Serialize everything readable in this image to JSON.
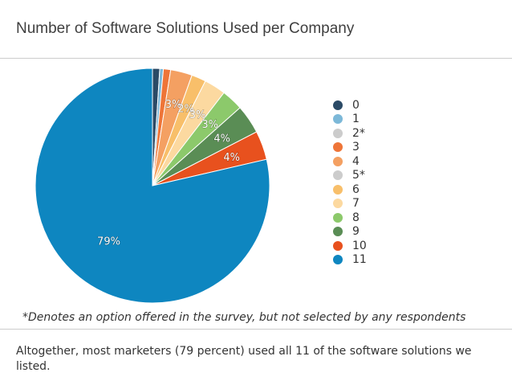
{
  "chart_data": {
    "type": "pie",
    "title": "Number of Software Solutions Used per Company",
    "categories": [
      "0",
      "1",
      "2*",
      "3",
      "4",
      "5*",
      "6",
      "7",
      "8",
      "9",
      "10",
      "11"
    ],
    "values": [
      1,
      0.5,
      0,
      1,
      3,
      0,
      2,
      3,
      3,
      4,
      4,
      79
    ],
    "labels": [
      "",
      "",
      "",
      "",
      "3%",
      "",
      "2%",
      "3%",
      "3%",
      "4%",
      "4%",
      "79%"
    ],
    "colors": [
      "#2b4a66",
      "#7cb8d8",
      "#cccccc",
      "#ee7538",
      "#f4a062",
      "#cccccc",
      "#f8bf6a",
      "#fcd9a0",
      "#8cc96b",
      "#5a8d55",
      "#e8511e",
      "#0e86c0"
    ],
    "legend_position": "right"
  },
  "footnote": "*Denotes an option offered in the survey, but not selected by any respondents",
  "caption": "Altogether, most marketers (79 percent) used all 11 of the software solutions we listed."
}
